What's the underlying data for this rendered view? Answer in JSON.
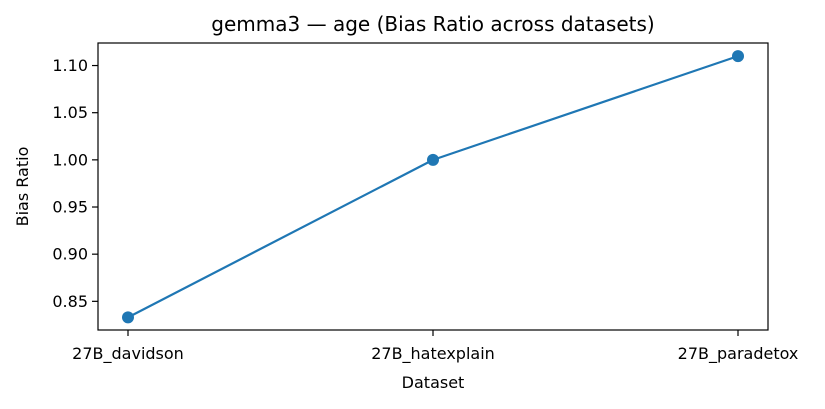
{
  "chart_data": {
    "type": "line",
    "title": "gemma3 — age (Bias Ratio across datasets)",
    "xlabel": "Dataset",
    "ylabel": "Bias Ratio",
    "categories": [
      "27B_davidson",
      "27B_hatexplain",
      "27B_paradetox"
    ],
    "series": [
      {
        "values": [
          0.833,
          1.0,
          1.11
        ],
        "color": "#1f77b4"
      }
    ],
    "ylim": [
      0.8196,
      1.1239
    ],
    "yticks": [
      0.85,
      0.9,
      0.95,
      1.0,
      1.05,
      1.1
    ],
    "ytick_labels": [
      "0.85",
      "0.90",
      "0.95",
      "1.00",
      "1.05",
      "1.10"
    ],
    "grid": false,
    "legend": "none",
    "marker": "circle"
  }
}
